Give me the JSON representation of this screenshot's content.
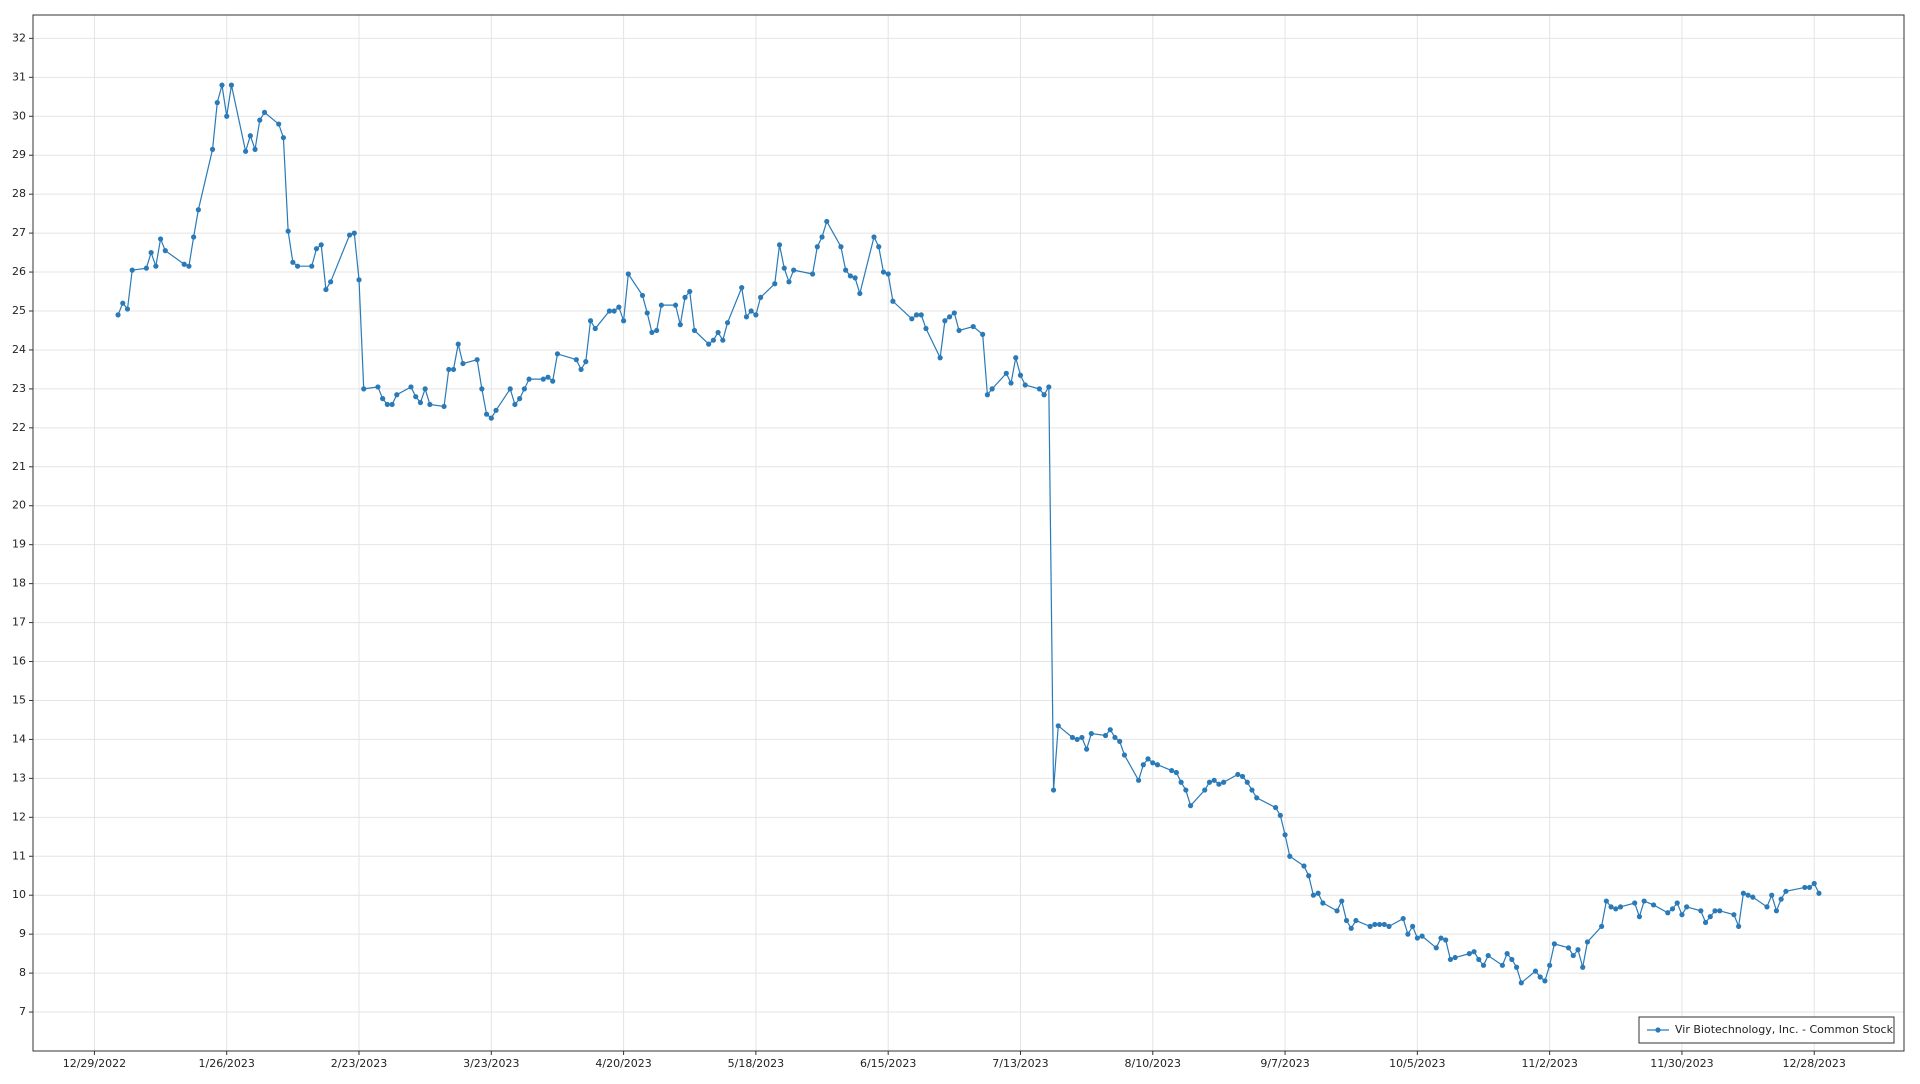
{
  "chart_data": {
    "type": "line",
    "grid": true,
    "legend": "lower right",
    "xlim": [
      "12/16/2022",
      "1/16/2024"
    ],
    "xticks": [
      "12/29/2022",
      "1/26/2023",
      "2/23/2023",
      "3/23/2023",
      "4/20/2023",
      "5/18/2023",
      "6/15/2023",
      "7/13/2023",
      "8/10/2023",
      "9/7/2023",
      "10/5/2023",
      "11/2/2023",
      "11/30/2023",
      "12/28/2023"
    ],
    "ylim": [
      6,
      32.6
    ],
    "yticks": [
      7,
      8,
      9,
      10,
      11,
      12,
      13,
      14,
      15,
      16,
      17,
      18,
      19,
      20,
      21,
      22,
      23,
      24,
      25,
      26,
      27,
      28,
      29,
      30,
      31,
      32
    ],
    "x": [
      "1/3/2023",
      "1/4/2023",
      "1/5/2023",
      "1/6/2023",
      "1/9/2023",
      "1/10/2023",
      "1/11/2023",
      "1/12/2023",
      "1/13/2023",
      "1/17/2023",
      "1/18/2023",
      "1/19/2023",
      "1/20/2023",
      "1/23/2023",
      "1/24/2023",
      "1/25/2023",
      "1/26/2023",
      "1/27/2023",
      "1/30/2023",
      "1/31/2023",
      "2/1/2023",
      "2/2/2023",
      "2/3/2023",
      "2/6/2023",
      "2/7/2023",
      "2/8/2023",
      "2/9/2023",
      "2/10/2023",
      "2/13/2023",
      "2/14/2023",
      "2/15/2023",
      "2/16/2023",
      "2/17/2023",
      "2/21/2023",
      "2/22/2023",
      "2/23/2023",
      "2/24/2023",
      "2/27/2023",
      "2/28/2023",
      "3/1/2023",
      "3/2/2023",
      "3/3/2023",
      "3/6/2023",
      "3/7/2023",
      "3/8/2023",
      "3/9/2023",
      "3/10/2023",
      "3/13/2023",
      "3/14/2023",
      "3/15/2023",
      "3/16/2023",
      "3/17/2023",
      "3/20/2023",
      "3/21/2023",
      "3/22/2023",
      "3/23/2023",
      "3/24/2023",
      "3/27/2023",
      "3/28/2023",
      "3/29/2023",
      "3/30/2023",
      "3/31/2023",
      "4/3/2023",
      "4/4/2023",
      "4/5/2023",
      "4/6/2023",
      "4/10/2023",
      "4/11/2023",
      "4/12/2023",
      "4/13/2023",
      "4/14/2023",
      "4/17/2023",
      "4/18/2023",
      "4/19/2023",
      "4/20/2023",
      "4/21/2023",
      "4/24/2023",
      "4/25/2023",
      "4/26/2023",
      "4/27/2023",
      "4/28/2023",
      "5/1/2023",
      "5/2/2023",
      "5/3/2023",
      "5/4/2023",
      "5/5/2023",
      "5/8/2023",
      "5/9/2023",
      "5/10/2023",
      "5/11/2023",
      "5/12/2023",
      "5/15/2023",
      "5/16/2023",
      "5/17/2023",
      "5/18/2023",
      "5/19/2023",
      "5/22/2023",
      "5/23/2023",
      "5/24/2023",
      "5/25/2023",
      "5/26/2023",
      "5/30/2023",
      "5/31/2023",
      "6/1/2023",
      "6/2/2023",
      "6/5/2023",
      "6/6/2023",
      "6/7/2023",
      "6/8/2023",
      "6/9/2023",
      "6/12/2023",
      "6/13/2023",
      "6/14/2023",
      "6/15/2023",
      "6/16/2023",
      "6/20/2023",
      "6/21/2023",
      "6/22/2023",
      "6/23/2023",
      "6/26/2023",
      "6/27/2023",
      "6/28/2023",
      "6/29/2023",
      "6/30/2023",
      "7/3/2023",
      "7/5/2023",
      "7/6/2023",
      "7/7/2023",
      "7/10/2023",
      "7/11/2023",
      "7/12/2023",
      "7/13/2023",
      "7/14/2023",
      "7/17/2023",
      "7/18/2023",
      "7/19/2023",
      "7/20/2023",
      "7/21/2023",
      "7/24/2023",
      "7/25/2023",
      "7/26/2023",
      "7/27/2023",
      "7/28/2023",
      "7/31/2023",
      "8/1/2023",
      "8/2/2023",
      "8/3/2023",
      "8/4/2023",
      "8/7/2023",
      "8/8/2023",
      "8/9/2023",
      "8/10/2023",
      "8/11/2023",
      "8/14/2023",
      "8/15/2023",
      "8/16/2023",
      "8/17/2023",
      "8/18/2023",
      "8/21/2023",
      "8/22/2023",
      "8/23/2023",
      "8/24/2023",
      "8/25/2023",
      "8/28/2023",
      "8/29/2023",
      "8/30/2023",
      "8/31/2023",
      "9/1/2023",
      "9/5/2023",
      "9/6/2023",
      "9/7/2023",
      "9/8/2023",
      "9/11/2023",
      "9/12/2023",
      "9/13/2023",
      "9/14/2023",
      "9/15/2023",
      "9/18/2023",
      "9/19/2023",
      "9/20/2023",
      "9/21/2023",
      "9/22/2023",
      "9/25/2023",
      "9/26/2023",
      "9/27/2023",
      "9/28/2023",
      "9/29/2023",
      "10/2/2023",
      "10/3/2023",
      "10/4/2023",
      "10/5/2023",
      "10/6/2023",
      "10/9/2023",
      "10/10/2023",
      "10/11/2023",
      "10/12/2023",
      "10/13/2023",
      "10/16/2023",
      "10/17/2023",
      "10/18/2023",
      "10/19/2023",
      "10/20/2023",
      "10/23/2023",
      "10/24/2023",
      "10/25/2023",
      "10/26/2023",
      "10/27/2023",
      "10/30/2023",
      "10/31/2023",
      "11/1/2023",
      "11/2/2023",
      "11/3/2023",
      "11/6/2023",
      "11/7/2023",
      "11/8/2023",
      "11/9/2023",
      "11/10/2023",
      "11/13/2023",
      "11/14/2023",
      "11/15/2023",
      "11/16/2023",
      "11/17/2023",
      "11/20/2023",
      "11/21/2023",
      "11/22/2023",
      "11/24/2023",
      "11/27/2023",
      "11/28/2023",
      "11/29/2023",
      "11/30/2023",
      "12/1/2023",
      "12/4/2023",
      "12/5/2023",
      "12/6/2023",
      "12/7/2023",
      "12/8/2023",
      "12/11/2023",
      "12/12/2023",
      "12/13/2023",
      "12/14/2023",
      "12/15/2023",
      "12/18/2023",
      "12/19/2023",
      "12/20/2023",
      "12/21/2023",
      "12/22/2023",
      "12/26/2023",
      "12/27/2023",
      "12/28/2023",
      "12/29/2023"
    ],
    "series": [
      {
        "name": "Vir Biotechnology, Inc. - Common Stock",
        "color": "#2a7ab8",
        "values": [
          24.9,
          25.2,
          25.05,
          26.05,
          26.1,
          26.5,
          26.15,
          26.85,
          26.55,
          26.2,
          26.15,
          26.9,
          27.6,
          29.15,
          30.35,
          30.8,
          30.0,
          30.8,
          29.1,
          29.5,
          29.15,
          29.9,
          30.1,
          29.8,
          29.45,
          27.05,
          26.25,
          26.15,
          26.15,
          26.6,
          26.7,
          25.55,
          25.75,
          26.95,
          27.0,
          25.8,
          23.0,
          23.05,
          22.75,
          22.6,
          22.6,
          22.85,
          23.05,
          22.8,
          22.65,
          23.0,
          22.6,
          22.55,
          23.5,
          23.5,
          24.15,
          23.65,
          23.75,
          23.0,
          22.35,
          22.25,
          22.45,
          23.0,
          22.6,
          22.75,
          23.0,
          23.25,
          23.25,
          23.3,
          23.2,
          23.9,
          23.75,
          23.5,
          23.7,
          24.75,
          24.55,
          25.0,
          25.0,
          25.1,
          24.75,
          25.95,
          25.4,
          24.95,
          24.45,
          24.5,
          25.15,
          25.15,
          24.65,
          25.35,
          25.5,
          24.5,
          24.15,
          24.25,
          24.45,
          24.25,
          24.7,
          25.6,
          24.85,
          25.0,
          24.9,
          25.35,
          25.7,
          26.7,
          26.1,
          25.75,
          26.05,
          25.95,
          26.65,
          26.9,
          27.3,
          26.65,
          26.05,
          25.9,
          25.85,
          25.45,
          26.9,
          26.65,
          26.0,
          25.95,
          25.25,
          24.8,
          24.9,
          24.9,
          24.55,
          23.8,
          24.75,
          24.85,
          24.95,
          24.5,
          24.6,
          24.4,
          22.85,
          23.0,
          23.4,
          23.15,
          23.8,
          23.35,
          23.1,
          23.0,
          22.85,
          23.05,
          12.7,
          14.35,
          14.05,
          14.0,
          14.05,
          13.75,
          14.15,
          14.1,
          14.25,
          14.05,
          13.95,
          13.6,
          12.95,
          13.35,
          13.5,
          13.4,
          13.35,
          13.2,
          13.15,
          12.9,
          12.7,
          12.3,
          12.7,
          12.9,
          12.95,
          12.85,
          12.9,
          13.1,
          13.05,
          12.9,
          12.7,
          12.5,
          12.25,
          12.05,
          11.55,
          11.0,
          10.75,
          10.5,
          10.0,
          10.05,
          9.8,
          9.6,
          9.85,
          9.35,
          9.15,
          9.35,
          9.2,
          9.25,
          9.25,
          9.25,
          9.2,
          9.4,
          9.0,
          9.2,
          8.9,
          8.95,
          8.65,
          8.9,
          8.85,
          8.35,
          8.4,
          8.5,
          8.55,
          8.35,
          8.2,
          8.45,
          8.2,
          8.5,
          8.35,
          8.15,
          7.75,
          8.05,
          7.9,
          7.8,
          8.2,
          8.75,
          8.65,
          8.45,
          8.6,
          8.15,
          8.8,
          9.2,
          9.85,
          9.7,
          9.65,
          9.7,
          9.8,
          9.45,
          9.85,
          9.75,
          9.55,
          9.65,
          9.8,
          9.5,
          9.7,
          9.6,
          9.3,
          9.45,
          9.6,
          9.6,
          9.5,
          9.2,
          10.05,
          10.0,
          9.95,
          9.7,
          10.0,
          9.6,
          9.9,
          10.1,
          10.2,
          10.2,
          10.3,
          10.05
        ]
      }
    ]
  }
}
